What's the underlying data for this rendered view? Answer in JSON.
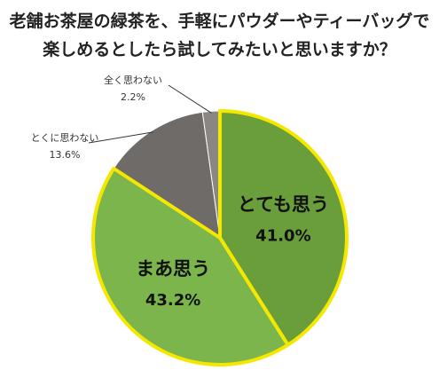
{
  "chart_data": {
    "type": "pie",
    "title": "老舗お茶屋の緑茶を、手軽にパウダーやティーバッグで\n楽しめるとしたら試してみたいと思いますか？",
    "slices": [
      {
        "label": "とても思う",
        "value": 41.0,
        "value_label": "41.0%",
        "color": "#6a9e3a"
      },
      {
        "label": "まあ思う",
        "value": 43.2,
        "value_label": "43.2%",
        "color": "#7bb54b"
      },
      {
        "label": "とくに思わない",
        "value": 13.6,
        "value_label": "13.6%",
        "color": "#6f6b68"
      },
      {
        "label": "全く思わない",
        "value": 2.2,
        "value_label": "2.2%",
        "color": "#8a8683"
      }
    ],
    "start": "12 o'clock",
    "direction": "clockwise",
    "highlight_stroke": "#f5e800",
    "legend": "none"
  }
}
